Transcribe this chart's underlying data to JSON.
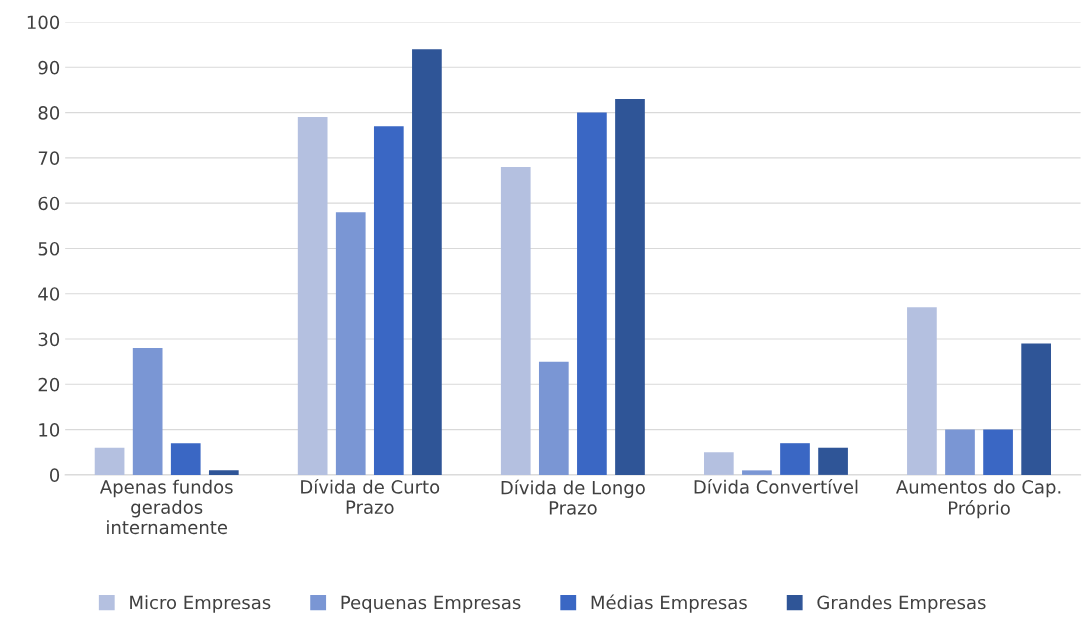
{
  "chart_data": {
    "type": "bar",
    "categories": [
      "Apenas fundos\ngerados\ninternamente",
      "Dívida de Curto\nPrazo",
      "Dívida de Longo\nPrazo",
      "Dívida Convertível",
      "Aumentos do Cap.\nPróprio"
    ],
    "series": [
      {
        "name": "Micro Empresas",
        "color": "#b4c0e0",
        "values": [
          6,
          79,
          68,
          5,
          37
        ]
      },
      {
        "name": "Pequenas Empresas",
        "color": "#7a96d4",
        "values": [
          28,
          58,
          25,
          1,
          10
        ]
      },
      {
        "name": "Médias Empresas",
        "color": "#3a67c4",
        "values": [
          7,
          77,
          80,
          7,
          10
        ]
      },
      {
        "name": "Grandes Empresas",
        "color": "#2f5597",
        "values": [
          1,
          94,
          83,
          6,
          29
        ]
      }
    ],
    "ylim": [
      0,
      100
    ],
    "yticks": [
      0,
      10,
      20,
      30,
      40,
      50,
      60,
      70,
      80,
      90,
      100
    ],
    "grid": "y",
    "legend": "bottom"
  }
}
